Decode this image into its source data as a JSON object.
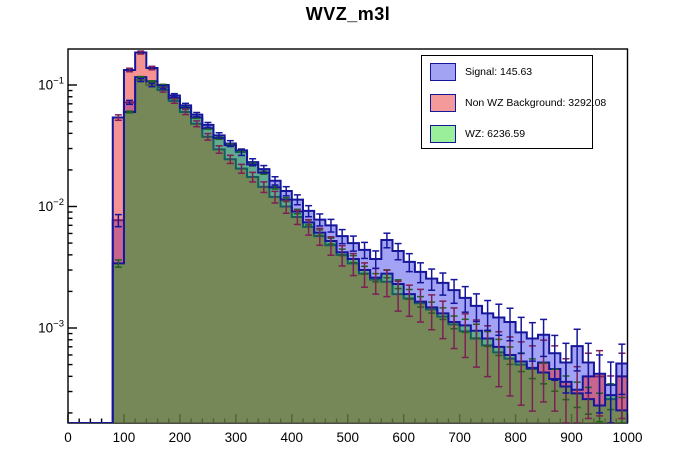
{
  "title": "WVZ_m3l",
  "legend": {
    "entries": [
      {
        "label": "Signal: 145.63",
        "swatch_fill": "#a3a3f3",
        "swatch_border": "#16169b"
      },
      {
        "label": "Non WZ Background: 3292.08",
        "swatch_fill": "#f59a9a",
        "swatch_border": "#16169b"
      },
      {
        "label": "WZ: 6236.59",
        "swatch_fill": "#9aef9a",
        "swatch_border": "#16169b"
      }
    ]
  },
  "chart_data": {
    "type": "histogram-step-overlay",
    "title": "WVZ_m3l",
    "xlabel": "",
    "ylabel": "",
    "y_scale": "log",
    "x_range": [
      0,
      1000
    ],
    "y_range": [
      0.000166,
      0.194
    ],
    "bin_start": 80,
    "bin_width": 20,
    "n_bins": 46,
    "x_major_ticks": [
      0,
      100,
      200,
      300,
      400,
      500,
      600,
      700,
      800,
      900,
      1000
    ],
    "x_minor_step": 20,
    "y_major_ticks": [
      {
        "value": 0.1,
        "base": "10",
        "exp": "−1"
      },
      {
        "value": 0.01,
        "base": "10",
        "exp": "−2"
      },
      {
        "value": 0.001,
        "base": "10",
        "exp": "−3"
      }
    ],
    "grid": false,
    "legend_position": "top-right",
    "series": [
      {
        "name": "Signal",
        "total": 145.63,
        "fill": "rgba(60,60,235,0.47)",
        "line_color": "#16169b",
        "err_color": "#16169b",
        "err_coeff": 0.01,
        "values": [
          0.0077,
          0.072,
          0.11,
          0.1,
          0.096,
          0.082,
          0.068,
          0.057,
          0.047,
          0.0385,
          0.033,
          0.028,
          0.0232,
          0.0203,
          0.0163,
          0.0134,
          0.0114,
          0.0092,
          0.0078,
          0.007,
          0.0057,
          0.005,
          0.0044,
          0.0037,
          0.0053,
          0.0043,
          0.0035,
          0.0029,
          0.00255,
          0.00235,
          0.00205,
          0.00177,
          0.00152,
          0.00132,
          0.00122,
          0.00112,
          0.00092,
          0.00082,
          0.00088,
          0.00062,
          0.00052,
          0.00071,
          0.00052,
          0.0004,
          0.00034,
          0.00051
        ]
      },
      {
        "name": "Non WZ Background",
        "total": 3292.08,
        "fill": "rgba(235,40,40,0.50)",
        "line_color": "#16169b",
        "err_color": "#7c2156",
        "err_coeff": 0.012,
        "values": [
          0.054,
          0.133,
          0.185,
          0.138,
          0.091,
          0.074,
          0.06,
          0.048,
          0.0375,
          0.0295,
          0.0245,
          0.0205,
          0.0175,
          0.0145,
          0.012,
          0.01,
          0.0082,
          0.0068,
          0.0057,
          0.0048,
          0.004,
          0.0034,
          0.0028,
          0.0025,
          0.0024,
          0.0019,
          0.00175,
          0.0016,
          0.00142,
          0.00124,
          0.00107,
          0.00094,
          0.00082,
          0.00072,
          0.00063,
          0.00056,
          0.0005,
          0.00046,
          0.00052,
          0.00046,
          0.00036,
          0.00031,
          0.0004,
          0.00042,
          0.00026,
          0.0004
        ]
      },
      {
        "name": "WZ",
        "total": 6236.59,
        "fill": "rgba(20,180,20,0.45)",
        "line_color": "#16169b",
        "err_color": "#1e641e",
        "err_coeff": 0.004,
        "values": [
          0.0034,
          0.06,
          0.116,
          0.107,
          0.1,
          0.078,
          0.065,
          0.054,
          0.044,
          0.0365,
          0.032,
          0.029,
          0.0222,
          0.019,
          0.0144,
          0.0114,
          0.0091,
          0.0074,
          0.0061,
          0.0052,
          0.0042,
          0.0037,
          0.003,
          0.0026,
          0.0028,
          0.0023,
          0.0019,
          0.00165,
          0.00148,
          0.00132,
          0.00112,
          0.00105,
          0.00095,
          0.00082,
          0.0007,
          0.0006,
          0.00053,
          0.00047,
          0.00043,
          0.00038,
          0.00033,
          0.00029,
          0.00026,
          0.00023,
          0.00028,
          0.00021
        ]
      }
    ],
    "draw_order": [
      "Signal",
      "Non WZ Background",
      "WZ"
    ]
  }
}
